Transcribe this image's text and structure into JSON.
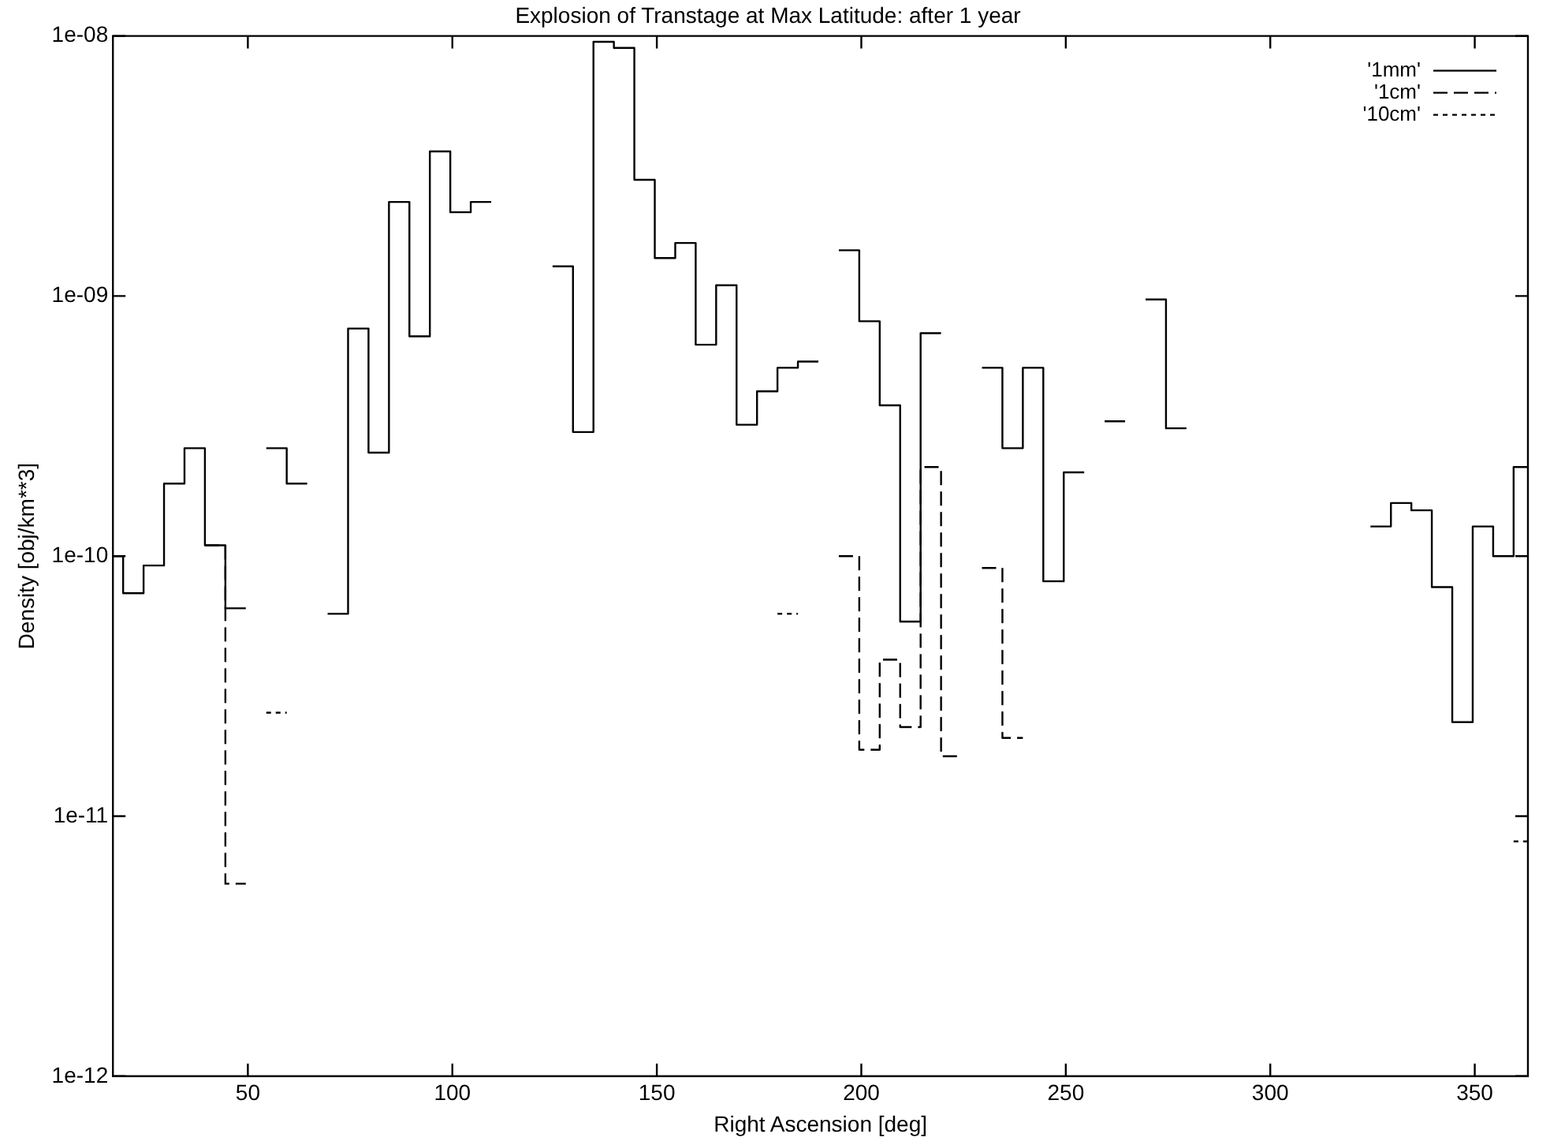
{
  "chart_data": {
    "type": "step",
    "title": "Explosion of Transtage at Max Latitude: after 1 year",
    "xlabel": "Right Ascension [deg]",
    "ylabel": "Density [obj/km**3]",
    "log": "y",
    "grid": false,
    "legend": "top right",
    "xlim": [
      17,
      363
    ],
    "xticks": [
      50,
      100,
      150,
      200,
      250,
      300,
      350
    ],
    "ylim": [
      1e-12,
      1e-08
    ],
    "yticks": [
      {
        "value": 1e-12,
        "label": "1e-12"
      },
      {
        "value": 1e-11,
        "label": "1e-11"
      },
      {
        "value": 1e-10,
        "label": "1e-10"
      },
      {
        "value": 1e-09,
        "label": "1e-09"
      },
      {
        "value": 1e-08,
        "label": "1e-08"
      }
    ],
    "series": [
      {
        "name": "'1mm'",
        "color": "#000000",
        "line_style": "solid",
        "x": [
          17,
          19.5,
          24.5,
          29.5,
          34.5,
          39.5,
          44.5,
          49.5,
          54.5,
          59.5,
          64.5,
          69.5,
          74.5,
          79.5,
          84.5,
          89.5,
          94.5,
          99.5,
          104.5,
          109.5,
          114.5,
          119.5,
          124.5,
          129.5,
          134.5,
          139.5,
          144.5,
          149.5,
          154.5,
          159.5,
          164.5,
          169.5,
          174.5,
          179.5,
          184.5,
          189.5,
          194.5,
          199.5,
          204.5,
          209.5,
          214.5,
          219.5,
          224.5,
          229.5,
          234.5,
          239.5,
          244.5,
          249.5,
          254.5,
          259.5,
          264.5,
          269.5,
          274.5,
          279.5,
          319.5,
          324.5,
          329.5,
          334.5,
          339.5,
          344.5,
          349.5,
          354.5,
          359.5,
          363
        ],
        "values": [
          1e-10,
          7.2e-11,
          9.2e-11,
          1.9e-10,
          2.6e-10,
          1.1e-10,
          6.3e-11,
          null,
          2.6e-10,
          1.9e-10,
          null,
          6e-11,
          7.5e-10,
          2.5e-10,
          2.3e-09,
          7e-10,
          3.6e-09,
          2.1e-09,
          2.3e-09,
          null,
          null,
          null,
          1.3e-09,
          3e-10,
          9.5e-09,
          9e-09,
          2.8e-09,
          1.4e-09,
          1.6e-09,
          6.5e-10,
          1.1e-09,
          3.2e-10,
          4.3e-10,
          5.3e-10,
          5.6e-10,
          null,
          1.5e-09,
          8e-10,
          3.8e-10,
          5.6e-11,
          7.2e-10,
          null,
          null,
          5.3e-10,
          2.6e-10,
          5.3e-10,
          8e-11,
          2.1e-10,
          null,
          3.3e-10,
          null,
          9.7e-10,
          3.1e-10,
          null,
          null,
          1.3e-10,
          1.6e-10,
          1.5e-10,
          7.6e-11,
          2.3e-11,
          1.3e-10,
          1e-10,
          2.2e-10,
          2.2e-10
        ]
      },
      {
        "name": "'1cm'",
        "color": "#000000",
        "line_style": "dashed",
        "x": [
          39.5,
          44.5,
          49.5,
          194.5,
          199.5,
          204.5,
          209.5,
          214.5,
          219.5,
          224.5,
          229.5,
          234.5,
          239.5
        ],
        "values": [
          1.1e-10,
          5.5e-12,
          null,
          1e-10,
          1.8e-11,
          4e-11,
          2.2e-11,
          2.2e-10,
          1.7e-11,
          null,
          9e-11,
          2e-11,
          2e-11
        ]
      },
      {
        "name": "'10cm'",
        "color": "#000000",
        "line_style": "dotted",
        "x": [
          54.5,
          59.5,
          179.5,
          184.5,
          359.5,
          363
        ],
        "values": [
          2.5e-11,
          null,
          6e-11,
          null,
          8e-12,
          8e-12
        ]
      }
    ]
  }
}
